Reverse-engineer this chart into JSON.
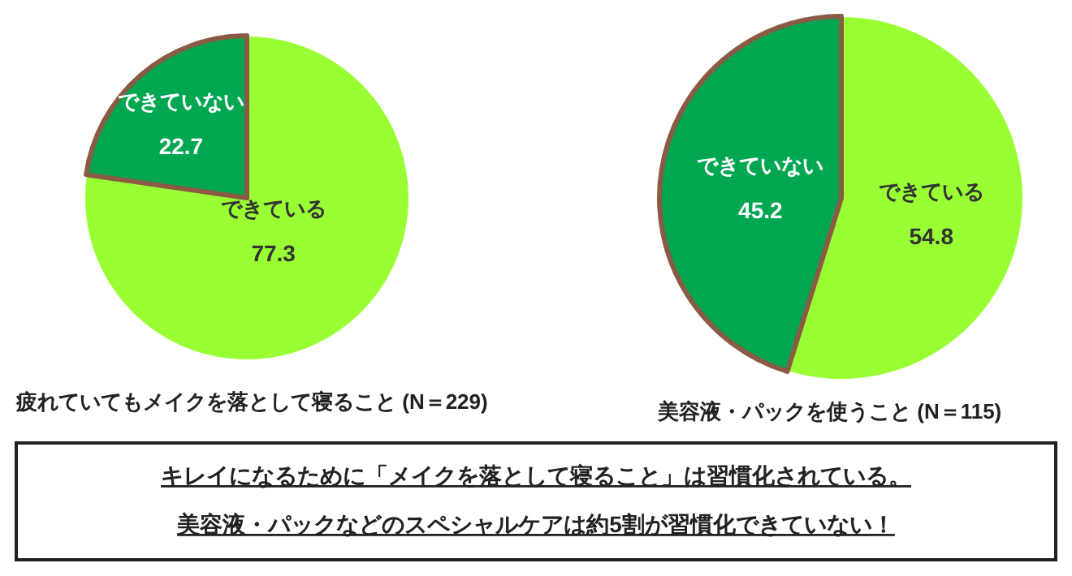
{
  "chart_data": [
    {
      "type": "pie",
      "title": "疲れていてもメイクを落として寝ること (N＝229)",
      "categories": [
        "できている",
        "できていない"
      ],
      "values": [
        77.3,
        22.7
      ],
      "colors": [
        "#99ff33",
        "#00a650"
      ],
      "data_labels": true
    },
    {
      "type": "pie",
      "title": "美容液・パックを使うこと (N＝115)",
      "categories": [
        "できている",
        "できていない"
      ],
      "values": [
        54.8,
        45.2
      ],
      "colors": [
        "#99ff33",
        "#00a650"
      ],
      "data_labels": true
    },
    {
      "type": "other",
      "annotations": [
        "キレイになるために「メイクを落として寝ること」は習慣化されている。",
        "美容液・パックなどのスペシャルケアは約5割が習慣化できていない！"
      ]
    }
  ]
}
